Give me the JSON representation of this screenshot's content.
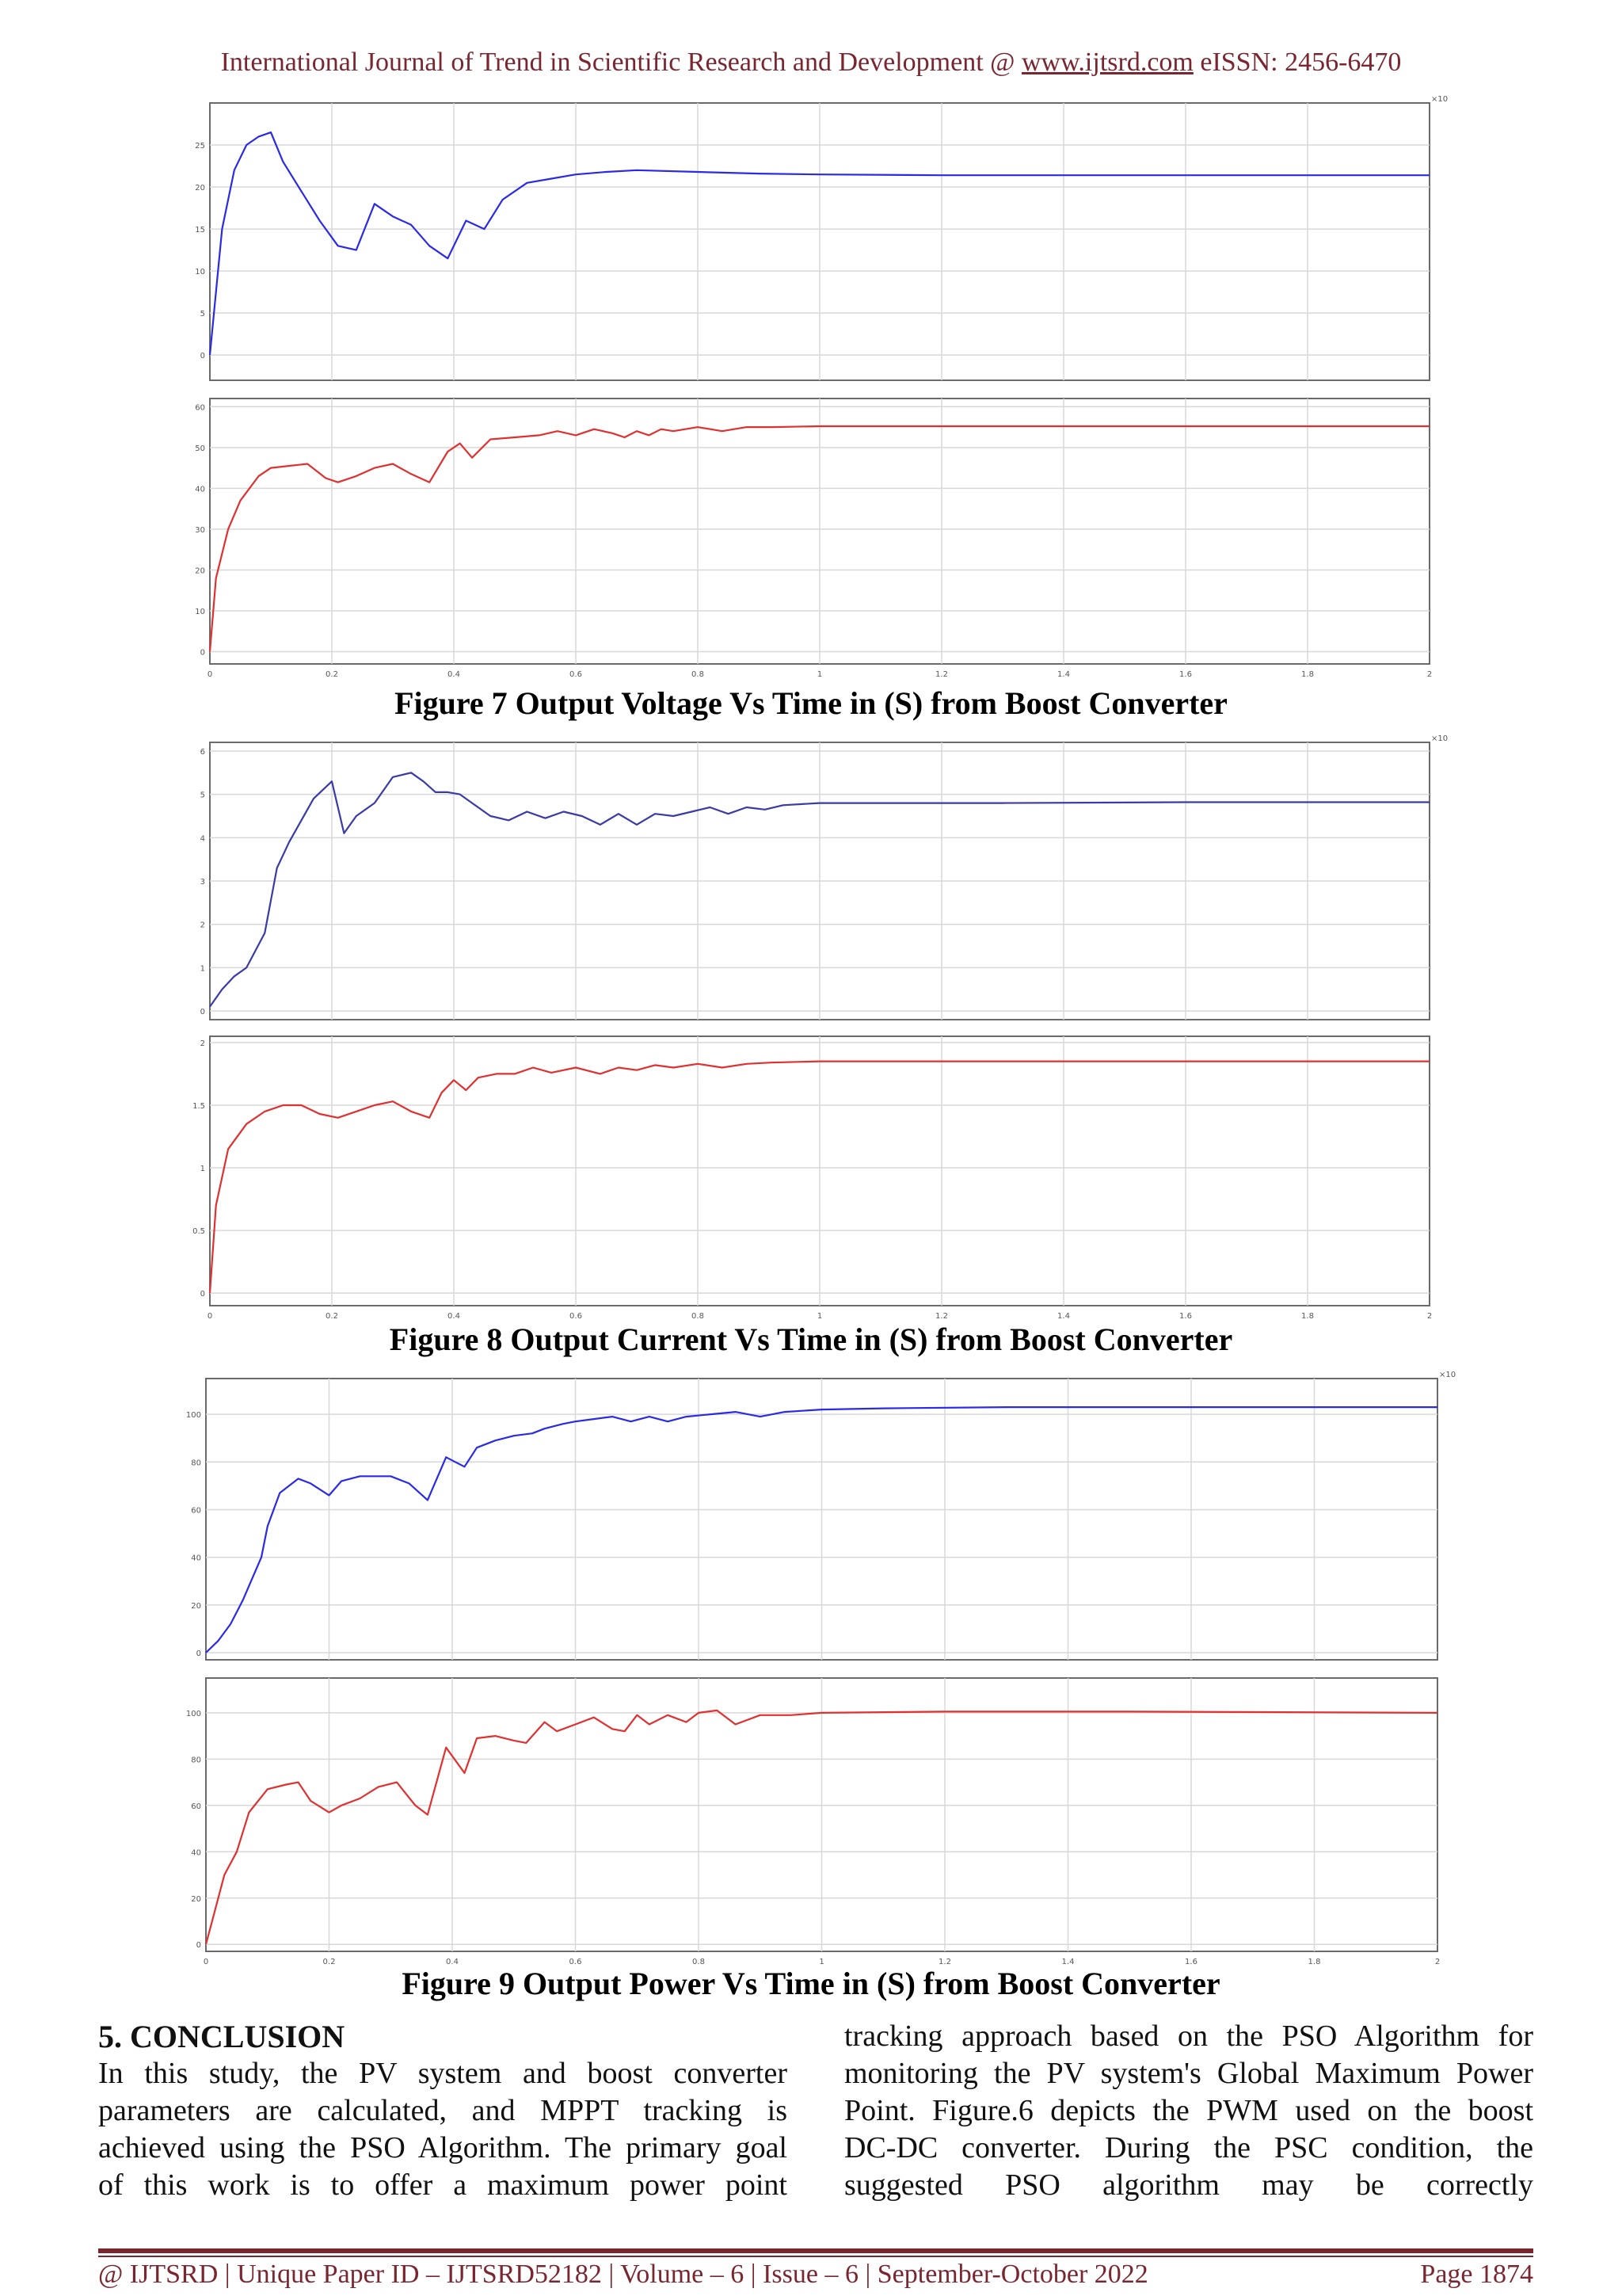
{
  "header": {
    "journal": "International Journal of Trend in Scientific Research and Development @ ",
    "url": "www.ijtsrd.com",
    "issn": " eISSN: 2456-6470"
  },
  "figures": [
    {
      "caption": "Figure 7 Output Voltage Vs Time in (S) from Boost Converter"
    },
    {
      "caption": "Figure 8 Output Current Vs Time in (S) from Boost Converter"
    },
    {
      "caption": "Figure 9 Output Power Vs Time in (S) from Boost Converter"
    }
  ],
  "chart_data": [
    {
      "type": "line",
      "panel": "fig7-top",
      "color": "#2a2ae8",
      "xlim": [
        0,
        2
      ],
      "ylim": [
        -3,
        30
      ],
      "yticks": [
        "0",
        "5",
        "10",
        "15",
        "20",
        "25"
      ],
      "ytick_vals": [
        0,
        5,
        10,
        15,
        20,
        25
      ],
      "xticks": [],
      "corner_label": "×10",
      "x": [
        0,
        0.02,
        0.04,
        0.06,
        0.08,
        0.1,
        0.12,
        0.15,
        0.18,
        0.21,
        0.24,
        0.27,
        0.3,
        0.33,
        0.36,
        0.39,
        0.42,
        0.45,
        0.48,
        0.52,
        0.56,
        0.6,
        0.65,
        0.7,
        0.8,
        0.9,
        1.0,
        1.2,
        1.5,
        2.0
      ],
      "y": [
        0,
        15,
        22,
        25,
        26,
        26.5,
        23,
        19.5,
        16,
        13,
        12.5,
        18,
        16.5,
        15.5,
        13,
        11.5,
        16,
        15,
        18.5,
        20.5,
        21,
        21.5,
        21.8,
        22,
        21.8,
        21.6,
        21.5,
        21.4,
        21.4,
        21.4
      ]
    },
    {
      "type": "line",
      "panel": "fig7-bottom",
      "color": "#e03030",
      "xlim": [
        0,
        2
      ],
      "ylim": [
        -3,
        62
      ],
      "yticks": [
        "0",
        "10",
        "20",
        "30",
        "40",
        "50",
        "60"
      ],
      "ytick_vals": [
        0,
        10,
        20,
        30,
        40,
        50,
        60
      ],
      "xticks": [
        "0",
        "0.2",
        "0.4",
        "0.6",
        "0.8",
        "1",
        "1.2",
        "1.4",
        "1.6",
        "1.8",
        "2"
      ],
      "xtick_vals": [
        0,
        0.2,
        0.4,
        0.6,
        0.8,
        1,
        1.2,
        1.4,
        1.6,
        1.8,
        2
      ],
      "x": [
        0,
        0.01,
        0.03,
        0.05,
        0.08,
        0.1,
        0.13,
        0.16,
        0.19,
        0.21,
        0.24,
        0.27,
        0.3,
        0.33,
        0.36,
        0.39,
        0.41,
        0.43,
        0.46,
        0.5,
        0.54,
        0.57,
        0.6,
        0.63,
        0.66,
        0.68,
        0.7,
        0.72,
        0.74,
        0.76,
        0.8,
        0.84,
        0.88,
        0.92,
        1.0,
        1.2,
        1.5,
        2.0
      ],
      "y": [
        0,
        18,
        30,
        37,
        43,
        45,
        45.5,
        46,
        42.5,
        41.5,
        43,
        45,
        46,
        43.5,
        41.5,
        49,
        51,
        47.5,
        52,
        52.5,
        53,
        54,
        53,
        54.5,
        53.5,
        52.5,
        54,
        53,
        54.5,
        54,
        55,
        54,
        55,
        55,
        55.2,
        55.2,
        55.2,
        55.2
      ]
    },
    {
      "type": "line",
      "panel": "fig8-top",
      "color": "#3a3aa8",
      "xlim": [
        0,
        2
      ],
      "ylim": [
        -0.2,
        6.2
      ],
      "yticks": [
        "0",
        "1",
        "2",
        "3",
        "4",
        "5",
        "6"
      ],
      "ytick_vals": [
        0,
        1,
        2,
        3,
        4,
        5,
        6
      ],
      "xticks": [],
      "corner_label": "×10",
      "x": [
        0,
        0.02,
        0.04,
        0.06,
        0.09,
        0.11,
        0.13,
        0.15,
        0.17,
        0.2,
        0.22,
        0.24,
        0.27,
        0.3,
        0.33,
        0.35,
        0.37,
        0.39,
        0.41,
        0.43,
        0.46,
        0.49,
        0.52,
        0.55,
        0.58,
        0.61,
        0.64,
        0.67,
        0.7,
        0.73,
        0.76,
        0.79,
        0.82,
        0.85,
        0.88,
        0.91,
        0.94,
        1.0,
        1.3,
        1.6,
        2.0
      ],
      "y": [
        0.1,
        0.5,
        0.8,
        1.0,
        1.8,
        3.3,
        3.9,
        4.4,
        4.9,
        5.3,
        4.1,
        4.5,
        4.8,
        5.4,
        5.5,
        5.3,
        5.05,
        5.05,
        5.0,
        4.8,
        4.5,
        4.4,
        4.6,
        4.45,
        4.6,
        4.5,
        4.3,
        4.55,
        4.3,
        4.55,
        4.5,
        4.6,
        4.7,
        4.55,
        4.7,
        4.65,
        4.75,
        4.8,
        4.8,
        4.82,
        4.82
      ]
    },
    {
      "type": "line",
      "panel": "fig8-bottom",
      "color": "#e03030",
      "xlim": [
        0,
        2
      ],
      "ylim": [
        -0.1,
        2.05
      ],
      "yticks": [
        "0",
        "0.5",
        "1",
        "1.5",
        "2"
      ],
      "ytick_vals": [
        0,
        0.5,
        1,
        1.5,
        2
      ],
      "xticks": [
        "0",
        "0.2",
        "0.4",
        "0.6",
        "0.8",
        "1",
        "1.2",
        "1.4",
        "1.6",
        "1.8",
        "2"
      ],
      "xtick_vals": [
        0,
        0.2,
        0.4,
        0.6,
        0.8,
        1,
        1.2,
        1.4,
        1.6,
        1.8,
        2
      ],
      "x": [
        0,
        0.01,
        0.03,
        0.06,
        0.09,
        0.12,
        0.15,
        0.18,
        0.21,
        0.24,
        0.27,
        0.3,
        0.33,
        0.36,
        0.38,
        0.4,
        0.42,
        0.44,
        0.47,
        0.5,
        0.53,
        0.56,
        0.6,
        0.64,
        0.67,
        0.7,
        0.73,
        0.76,
        0.8,
        0.84,
        0.88,
        0.92,
        1.0,
        1.3,
        1.6,
        2.0
      ],
      "y": [
        0,
        0.7,
        1.15,
        1.35,
        1.45,
        1.5,
        1.5,
        1.43,
        1.4,
        1.45,
        1.5,
        1.53,
        1.45,
        1.4,
        1.6,
        1.7,
        1.62,
        1.72,
        1.75,
        1.75,
        1.8,
        1.76,
        1.8,
        1.75,
        1.8,
        1.78,
        1.82,
        1.8,
        1.83,
        1.8,
        1.83,
        1.84,
        1.85,
        1.85,
        1.85,
        1.85
      ]
    },
    {
      "type": "line",
      "panel": "fig9-top",
      "color": "#2a2ae8",
      "xlim": [
        0,
        2
      ],
      "ylim": [
        -3,
        115
      ],
      "yticks": [
        "0",
        "20",
        "40",
        "60",
        "80",
        "100"
      ],
      "ytick_vals": [
        0,
        20,
        40,
        60,
        80,
        100
      ],
      "xticks": [],
      "corner_label": "×10",
      "x": [
        0,
        0.02,
        0.04,
        0.06,
        0.09,
        0.1,
        0.12,
        0.15,
        0.17,
        0.2,
        0.22,
        0.25,
        0.3,
        0.33,
        0.36,
        0.39,
        0.42,
        0.44,
        0.47,
        0.5,
        0.53,
        0.55,
        0.58,
        0.6,
        0.63,
        0.66,
        0.69,
        0.72,
        0.75,
        0.78,
        0.82,
        0.86,
        0.9,
        0.94,
        1.0,
        1.1,
        1.3,
        1.6,
        2.0
      ],
      "y": [
        0,
        5,
        12,
        22,
        40,
        53,
        67,
        73,
        71,
        66,
        72,
        74,
        74,
        71,
        64,
        82,
        78,
        86,
        89,
        91,
        92,
        94,
        96,
        97,
        98,
        99,
        97,
        99,
        97,
        99,
        100,
        101,
        99,
        101,
        102,
        102.5,
        103,
        103,
        103
      ]
    },
    {
      "type": "line",
      "panel": "fig9-bottom",
      "color": "#e03030",
      "xlim": [
        0,
        2
      ],
      "ylim": [
        -3,
        115
      ],
      "yticks": [
        "0",
        "20",
        "40",
        "60",
        "80",
        "100"
      ],
      "ytick_vals": [
        0,
        20,
        40,
        60,
        80,
        100
      ],
      "xticks": [
        "0",
        "0.2",
        "0.4",
        "0.6",
        "0.8",
        "1",
        "1.2",
        "1.4",
        "1.6",
        "1.8",
        "2"
      ],
      "xtick_vals": [
        0,
        0.2,
        0.4,
        0.6,
        0.8,
        1,
        1.2,
        1.4,
        1.6,
        1.8,
        2
      ],
      "x": [
        0,
        0.01,
        0.03,
        0.05,
        0.07,
        0.1,
        0.13,
        0.15,
        0.17,
        0.2,
        0.22,
        0.25,
        0.28,
        0.31,
        0.34,
        0.36,
        0.39,
        0.42,
        0.44,
        0.47,
        0.5,
        0.52,
        0.55,
        0.57,
        0.6,
        0.63,
        0.66,
        0.68,
        0.7,
        0.72,
        0.75,
        0.78,
        0.8,
        0.83,
        0.86,
        0.9,
        0.95,
        1.0,
        1.2,
        1.5,
        2.0
      ],
      "y": [
        0,
        10,
        30,
        40,
        57,
        67,
        69,
        70,
        62,
        57,
        60,
        63,
        68,
        70,
        60,
        56,
        85,
        74,
        89,
        90,
        88,
        87,
        96,
        92,
        95,
        98,
        93,
        92,
        99,
        95,
        99,
        96,
        100,
        101,
        95,
        99,
        99,
        100,
        100.5,
        100.5,
        100
      ]
    }
  ],
  "section": {
    "title": "5.   CONCLUSION",
    "left_lines": [
      "In this study, the PV system and boost converter",
      "parameters are calculated, and MPPT tracking is",
      "achieved using the PSO Algorithm. The primary goal",
      "of this work is to offer a maximum power point"
    ],
    "right_lines": [
      "tracking approach based on the PSO Algorithm for",
      "monitoring the PV system's Global Maximum Power",
      "Point. Figure.6 depicts the PWM used on the boost",
      "DC-DC converter. During the PSC condition, the",
      "suggested    PSO    algorithm    may    be    correctly"
    ]
  },
  "footer": {
    "left": "@ IJTSRD  |  Unique Paper ID – IJTSRD52182  |  Volume – 6  |  Issue – 6  |  September-October 2022",
    "right": "Page 1874"
  }
}
